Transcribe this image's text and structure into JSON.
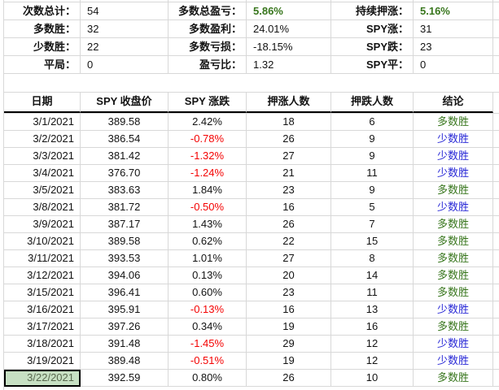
{
  "summary": {
    "rows": [
      [
        {
          "label": "次数总计：",
          "value": "54"
        },
        {
          "label": "多数总盈亏：",
          "value": "5.86%"
        },
        {
          "label": "持续押涨：",
          "value": "5.16%"
        }
      ],
      [
        {
          "label": "多数胜：",
          "value": "32"
        },
        {
          "label": "多数盈利：",
          "value": "24.01%"
        },
        {
          "label": "SPY涨：",
          "value": "31"
        }
      ],
      [
        {
          "label": "少数胜：",
          "value": "22"
        },
        {
          "label": "多数亏损：",
          "value": "-18.15%"
        },
        {
          "label": "SPY跌：",
          "value": "23"
        }
      ],
      [
        {
          "label": "平局：",
          "value": "0"
        },
        {
          "label": "盈亏比：",
          "value": "1.32"
        },
        {
          "label": "SPY平：",
          "value": "0"
        }
      ]
    ]
  },
  "table": {
    "headers": [
      "日期",
      "SPY 收盘价",
      "SPY 涨跌",
      "押涨人数",
      "押跌人数",
      "结论"
    ],
    "rows": [
      {
        "date": "3/1/2021",
        "close": "389.58",
        "change": "2.42%",
        "up": "18",
        "down": "6",
        "result": "多数胜"
      },
      {
        "date": "3/2/2021",
        "close": "386.54",
        "change": "-0.78%",
        "up": "26",
        "down": "9",
        "result": "少数胜"
      },
      {
        "date": "3/3/2021",
        "close": "381.42",
        "change": "-1.32%",
        "up": "27",
        "down": "9",
        "result": "少数胜"
      },
      {
        "date": "3/4/2021",
        "close": "376.70",
        "change": "-1.24%",
        "up": "21",
        "down": "11",
        "result": "少数胜"
      },
      {
        "date": "3/5/2021",
        "close": "383.63",
        "change": "1.84%",
        "up": "23",
        "down": "9",
        "result": "多数胜"
      },
      {
        "date": "3/8/2021",
        "close": "381.72",
        "change": "-0.50%",
        "up": "16",
        "down": "5",
        "result": "少数胜"
      },
      {
        "date": "3/9/2021",
        "close": "387.17",
        "change": "1.43%",
        "up": "26",
        "down": "7",
        "result": "多数胜"
      },
      {
        "date": "3/10/2021",
        "close": "389.58",
        "change": "0.62%",
        "up": "22",
        "down": "15",
        "result": "多数胜"
      },
      {
        "date": "3/11/2021",
        "close": "393.53",
        "change": "1.01%",
        "up": "27",
        "down": "8",
        "result": "多数胜"
      },
      {
        "date": "3/12/2021",
        "close": "394.06",
        "change": "0.13%",
        "up": "20",
        "down": "14",
        "result": "多数胜"
      },
      {
        "date": "3/15/2021",
        "close": "396.41",
        "change": "0.60%",
        "up": "23",
        "down": "11",
        "result": "多数胜"
      },
      {
        "date": "3/16/2021",
        "close": "395.91",
        "change": "-0.13%",
        "up": "16",
        "down": "13",
        "result": "少数胜"
      },
      {
        "date": "3/17/2021",
        "close": "397.26",
        "change": "0.34%",
        "up": "19",
        "down": "16",
        "result": "多数胜"
      },
      {
        "date": "3/18/2021",
        "close": "391.48",
        "change": "-1.45%",
        "up": "29",
        "down": "12",
        "result": "少数胜"
      },
      {
        "date": "3/19/2021",
        "close": "389.48",
        "change": "-0.51%",
        "up": "19",
        "down": "12",
        "result": "少数胜"
      },
      {
        "date": "3/22/2021",
        "close": "392.59",
        "change": "0.80%",
        "up": "26",
        "down": "10",
        "result": "多数胜"
      }
    ],
    "result_positive_label": "多数胜",
    "result_negative_label": "少数胜"
  },
  "selection": {
    "selected_cell_value": "3/22/2021"
  },
  "colors": {
    "green": "#38761d",
    "blue": "#2929d6",
    "red": "#f40202",
    "gridline": "#d8d8d8",
    "selection_fill": "#c7e0c3",
    "selection_text": "#59694f"
  }
}
